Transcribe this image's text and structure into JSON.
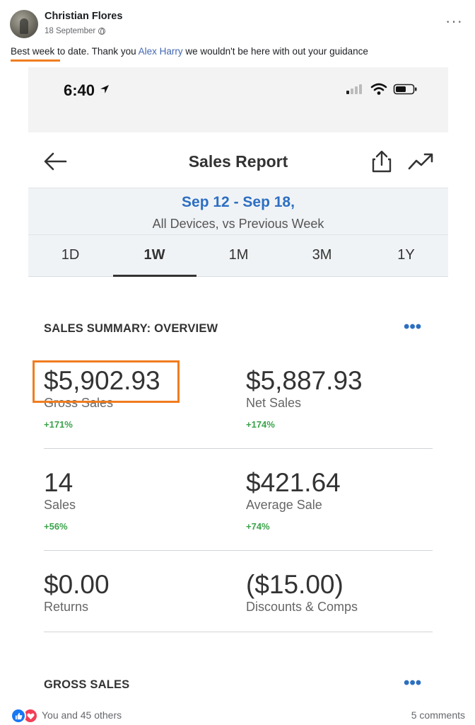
{
  "post": {
    "author": "Christian Flores",
    "date": "18 September",
    "text_highlight": "Best week",
    "text_middle": " to date.  Thank you ",
    "mention": "Alex Harry",
    "text_end": " we wouldn't be here with out your guidance",
    "accent_color": "#f07d20"
  },
  "phone": {
    "time": "6:40",
    "title": "Sales Report",
    "date_range": "Sep 12 - Sep 18,",
    "date_sub": "All Devices, vs Previous Week",
    "tabs": [
      {
        "label": "1D"
      },
      {
        "label": "1W",
        "active": true
      },
      {
        "label": "1M"
      },
      {
        "label": "3M"
      },
      {
        "label": "1Y"
      }
    ],
    "summary_title": "SALES SUMMARY: OVERVIEW",
    "metrics": {
      "gross": {
        "value": "$5,902.93",
        "label": "Gross Sales",
        "change": "+171%"
      },
      "net": {
        "value": "$5,887.93",
        "label": "Net Sales",
        "change": "+174%"
      },
      "sales": {
        "value": "14",
        "label": "Sales",
        "change": "+56%"
      },
      "avg": {
        "value": "$421.64",
        "label": "Average Sale",
        "change": "+74%"
      },
      "returns": {
        "value": "$0.00",
        "label": "Returns"
      },
      "discounts": {
        "value": "($15.00)",
        "label": "Discounts & Comps"
      }
    },
    "gross_section_title": "GROSS SALES",
    "link_color": "#2d6fc1",
    "positive_color": "#3aa34a"
  },
  "footer": {
    "reactions_text": "You and 45 others",
    "comments_text": "5 comments"
  }
}
